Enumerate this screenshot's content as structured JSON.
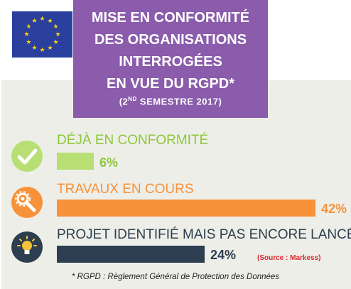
{
  "flag": {
    "icon": "eu-flag-icon",
    "star_color": "#f6d21a",
    "background": "#2b3f9e"
  },
  "title": {
    "lines": [
      "MISE EN CONFORMITÉ",
      "DES ORGANISATIONS",
      "INTERROGÉES",
      "EN VUE DU RGPD*"
    ],
    "subtitle": "(2ND SEMESTRE 2017)",
    "background": "#8a5cab"
  },
  "chart_data": {
    "type": "bar",
    "orientation": "horizontal",
    "categories": [
      "DÉJÀ EN CONFORMITÉ",
      "TRAVAUX EN COURS",
      "PROJET IDENTIFIÉ MAIS PAS ENCORE LANCÉ"
    ],
    "values": [
      6,
      42,
      24
    ],
    "value_labels": [
      "6%",
      "42%",
      "24%"
    ],
    "unit": "%",
    "colors": [
      "#b7df74",
      "#f7923b",
      "#2d3e50"
    ],
    "label_colors": [
      "#8cc83c",
      "#f7923b",
      "#2d3e50"
    ],
    "icons": [
      "checkmark-icon",
      "wrench-gear-icon",
      "lightbulb-icon"
    ],
    "xlim": [
      0,
      42
    ]
  },
  "source": "(Source : Markess)",
  "footnote": "* RGPD : Règlement Général de Protection des Données"
}
